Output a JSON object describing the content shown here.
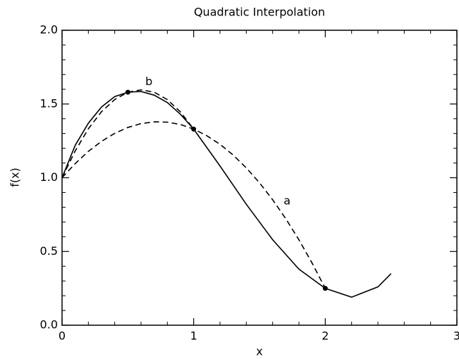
{
  "chart_data": {
    "type": "line",
    "title": "Quadratic Interpolation",
    "xlabel": "x",
    "ylabel": "f(x)",
    "xlim": [
      0,
      3
    ],
    "ylim": [
      0,
      2
    ],
    "xticks": [
      0,
      1,
      2,
      3
    ],
    "yticks": [
      {
        "value": 0,
        "label": "0.0"
      },
      {
        "value": 0.5,
        "label": "0.5"
      },
      {
        "value": 1,
        "label": "1.0"
      },
      {
        "value": 1.5,
        "label": "1.5"
      },
      {
        "value": 2,
        "label": "2.0"
      }
    ],
    "xminor": 5,
    "yminor": 5,
    "color": "#000000",
    "series": [
      {
        "style": "solid",
        "x": [
          0,
          0.1,
          0.2,
          0.3,
          0.4,
          0.5,
          0.6,
          0.7,
          0.8,
          0.9,
          1.0,
          1.2,
          1.4,
          1.6,
          1.8,
          2.0,
          2.2,
          2.4,
          2.5
        ],
        "values": [
          1.0,
          1.22,
          1.37,
          1.48,
          1.55,
          1.58,
          1.585,
          1.56,
          1.51,
          1.43,
          1.33,
          1.08,
          0.82,
          0.58,
          0.38,
          0.25,
          0.19,
          0.26,
          0.35
        ]
      },
      {
        "style": "dashed",
        "x": [
          0,
          0.1,
          0.2,
          0.3,
          0.4,
          0.5,
          0.6,
          0.7,
          0.8,
          0.9,
          1.0,
          1.1,
          1.2,
          1.3,
          1.4,
          1.5,
          1.6,
          1.7,
          1.8,
          1.9,
          2.0
        ],
        "values": [
          1.0,
          1.096,
          1.179,
          1.247,
          1.301,
          1.341,
          1.367,
          1.379,
          1.377,
          1.361,
          1.33,
          1.285,
          1.227,
          1.154,
          1.067,
          0.966,
          0.851,
          0.722,
          0.579,
          0.421,
          0.25
        ]
      },
      {
        "style": "dashed",
        "x": [
          0,
          0.1,
          0.2,
          0.3,
          0.4,
          0.5,
          0.6,
          0.7,
          0.8,
          0.9,
          1.0
        ],
        "values": [
          1.0,
          1.182,
          1.332,
          1.448,
          1.53,
          1.58,
          1.596,
          1.58,
          1.53,
          1.446,
          1.33
        ]
      }
    ],
    "points": {
      "x": [
        0.5,
        1,
        2
      ],
      "values": [
        1.58,
        1.33,
        0.25
      ]
    },
    "annotations": [
      {
        "text": "a",
        "x": 1.71,
        "y": 0.84
      },
      {
        "text": "b",
        "x": 0.66,
        "y": 1.65
      }
    ]
  }
}
